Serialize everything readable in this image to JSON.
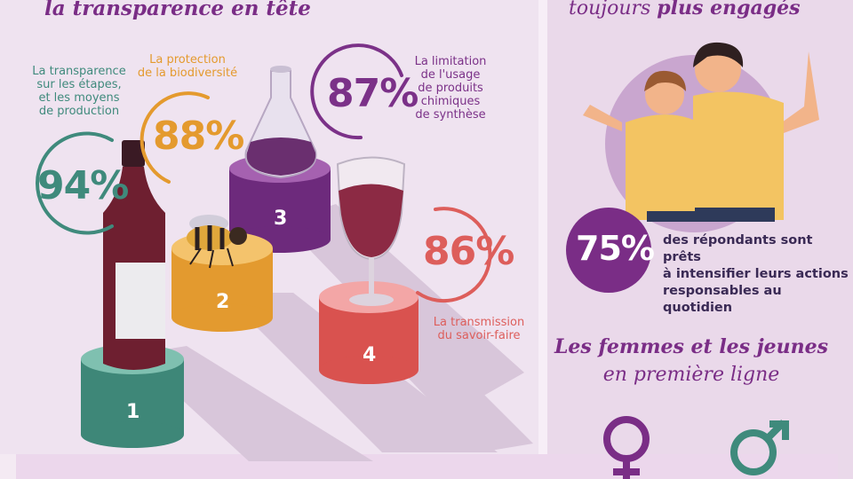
{
  "left": {
    "title": "la transparence en tête",
    "items": [
      {
        "rank": "1",
        "percent": "94%",
        "label_lines": [
          "La transparence",
          "sur les étapes,",
          "et les moyens",
          "de production"
        ],
        "color": "#3f8a7c"
      },
      {
        "rank": "2",
        "percent": "88%",
        "label_lines": [
          "La protection",
          "de la biodiversité"
        ],
        "color": "#e49a2e"
      },
      {
        "rank": "3",
        "percent": "87%",
        "label_lines": [
          "La limitation",
          "de l'usage",
          "de produits",
          "chimiques",
          "de synthèse"
        ],
        "color": "#7b3188"
      },
      {
        "rank": "4",
        "percent": "86%",
        "label_lines": [
          "La transmission",
          "du savoir-faire"
        ],
        "color": "#dd5e5b"
      }
    ]
  },
  "right": {
    "title_prefix": "toujours ",
    "title_bold": "plus engagés",
    "stat": {
      "percent": "75%",
      "lines": [
        "des répondants sont prêts",
        "à intensifier leurs actions",
        "responsables au quotidien"
      ]
    },
    "subtitle_bold": "Les femmes et les jeunes",
    "subtitle": "en première ligne"
  },
  "colors": {
    "purple": "#7a2d86",
    "teal": "#3f8a7c",
    "orange": "#e49a2e",
    "violet": "#7b3188",
    "coral": "#dd5e5b",
    "skin": "#f2b48a",
    "shirt": "#f3c462"
  },
  "icons": [
    "wine-bottle-icon",
    "bee-icon",
    "flask-icon",
    "wine-glass-icon",
    "female-symbol-icon",
    "male-symbol-icon",
    "couple-illustration"
  ]
}
